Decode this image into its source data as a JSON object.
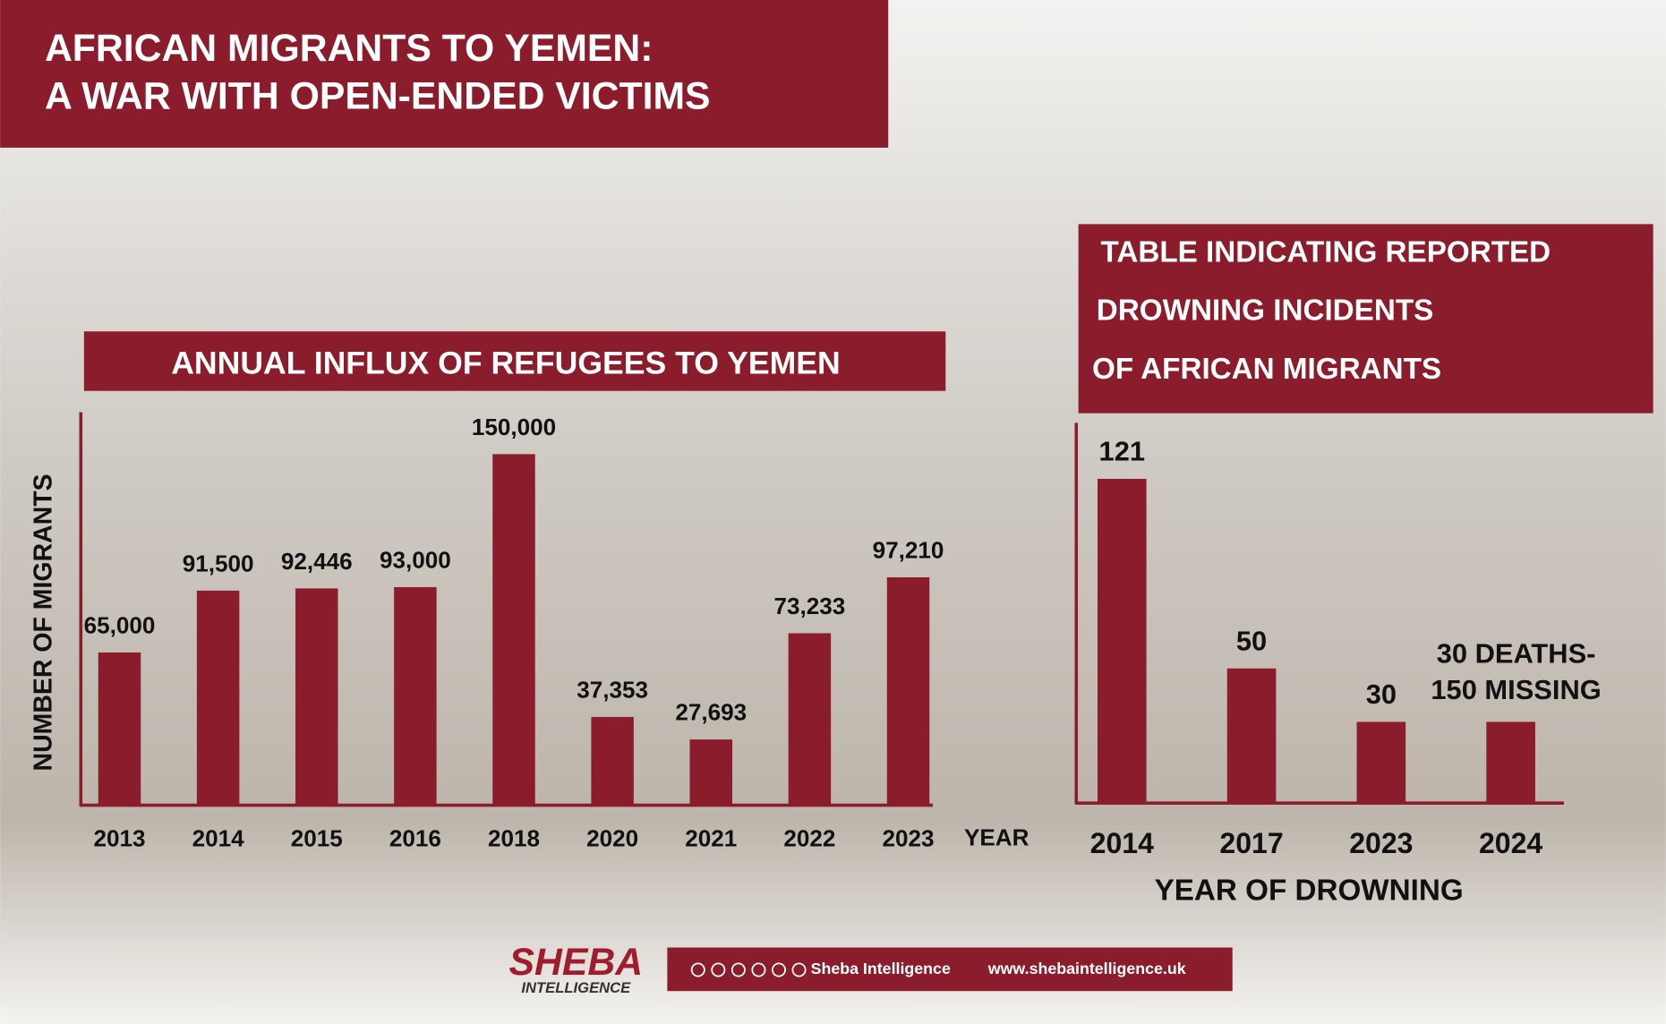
{
  "header": {
    "title_lines": [
      "AFRICAN MIGRANTS TO YEMEN:",
      "A WAR WITH OPEN-ENDED VICTIMS"
    ]
  },
  "chart_data": [
    {
      "type": "bar",
      "title": "ANNUAL INFLUX OF REFUGEES TO YEMEN",
      "x_label": "YEAR",
      "y_label": "NUMBER OF MIGRANTS",
      "categories": [
        "2013",
        "2014",
        "2015",
        "2016",
        "2018",
        "2020",
        "2021",
        "2022",
        "2023"
      ],
      "values": [
        65000,
        91500,
        92446,
        93000,
        150000,
        37353,
        27693,
        73233,
        97210
      ],
      "value_labels": [
        "65,000",
        "91,500",
        "92,446",
        "93,000",
        "150,000",
        "37,353",
        "27,693",
        "73,233",
        "97,210"
      ],
      "color": "#8a1c2b",
      "ylim": [
        0,
        168000
      ]
    },
    {
      "type": "bar",
      "title": [
        "TABLE INDICATING REPORTED",
        "DROWNING INCIDENTS",
        "OF AFRICAN MIGRANTS"
      ],
      "x_label": "YEAR OF DROWNING",
      "categories": [
        "2014",
        "2017",
        "2023",
        "2024"
      ],
      "values": [
        121,
        50,
        30,
        30
      ],
      "value_labels": [
        "121",
        "50",
        "30",
        "30 DEATHS- 150 MISSING"
      ],
      "color": "#8a1c2b",
      "ylim": [
        0,
        142
      ]
    }
  ],
  "footer": {
    "logo": "SHEBA",
    "logo_sub": "INTELLIGENCE",
    "social": "Sheba Intelligence",
    "url": "www.shebaintelligence.uk"
  }
}
